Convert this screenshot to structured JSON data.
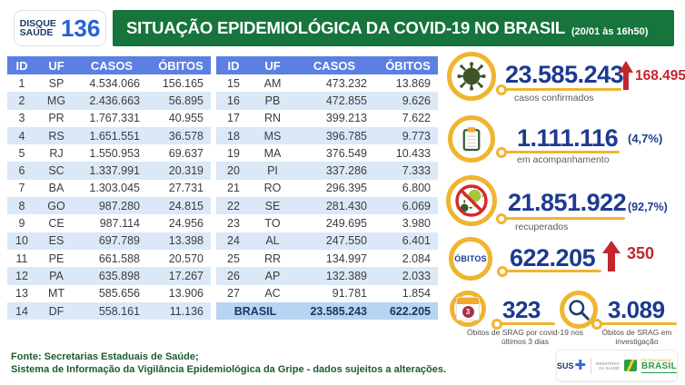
{
  "header": {
    "logo": {
      "line1": "DISQUE",
      "line2": "SAÚDE",
      "number": "136"
    },
    "title": "SITUAÇÃO EPIDEMIOLÓGICA DA COVID-19 NO BRASIL",
    "timestamp": "(20/01 às 16h50)"
  },
  "tables": {
    "columns": [
      "ID",
      "UF",
      "CASOS",
      "ÓBITOS"
    ],
    "left_rows": [
      [
        "1",
        "SP",
        "4.534.066",
        "156.165"
      ],
      [
        "2",
        "MG",
        "2.436.663",
        "56.895"
      ],
      [
        "3",
        "PR",
        "1.767.331",
        "40.955"
      ],
      [
        "4",
        "RS",
        "1.651.551",
        "36.578"
      ],
      [
        "5",
        "RJ",
        "1.550.953",
        "69.637"
      ],
      [
        "6",
        "SC",
        "1.337.991",
        "20.319"
      ],
      [
        "7",
        "BA",
        "1.303.045",
        "27.731"
      ],
      [
        "8",
        "GO",
        "987.280",
        "24.815"
      ],
      [
        "9",
        "CE",
        "987.114",
        "24.956"
      ],
      [
        "10",
        "ES",
        "697.789",
        "13.398"
      ],
      [
        "11",
        "PE",
        "661.588",
        "20.570"
      ],
      [
        "12",
        "PA",
        "635.898",
        "17.267"
      ],
      [
        "13",
        "MT",
        "585.656",
        "13.906"
      ],
      [
        "14",
        "DF",
        "558.161",
        "11.136"
      ]
    ],
    "right_rows": [
      [
        "15",
        "AM",
        "473.232",
        "13.869"
      ],
      [
        "16",
        "PB",
        "472.855",
        "9.626"
      ],
      [
        "17",
        "RN",
        "399.213",
        "7.622"
      ],
      [
        "18",
        "MS",
        "396.785",
        "9.773"
      ],
      [
        "19",
        "MA",
        "376.549",
        "10.433"
      ],
      [
        "20",
        "PI",
        "337.286",
        "7.333"
      ],
      [
        "21",
        "RO",
        "296.395",
        "6.800"
      ],
      [
        "22",
        "SE",
        "281.430",
        "6.069"
      ],
      [
        "23",
        "TO",
        "249.695",
        "3.980"
      ],
      [
        "24",
        "AL",
        "247.550",
        "6.401"
      ],
      [
        "25",
        "RR",
        "134.997",
        "2.084"
      ],
      [
        "26",
        "AP",
        "132.389",
        "2.033"
      ],
      [
        "27",
        "AC",
        "91.781",
        "1.854"
      ]
    ],
    "total": {
      "label": "BRASIL",
      "casos": "23.585.243",
      "obitos": "622.205"
    }
  },
  "metrics": {
    "confirmed": {
      "value": "23.585.243",
      "delta": "168.495",
      "label": "casos confirmados"
    },
    "monitoring": {
      "value": "1.111.116",
      "percent": "(4,7%)",
      "label": "em acompanhamento"
    },
    "recovered": {
      "value": "21.851.922",
      "percent": "(92,7%)",
      "label": "recuperados"
    },
    "deaths": {
      "badge": "ÓBITOS",
      "value": "622.205",
      "delta": "350"
    },
    "srag_covid": {
      "value": "323",
      "badge": "3",
      "label": "Óbitos de SRAG por covid-19 nos últimos 3 dias"
    },
    "srag_investigation": {
      "value": "3.089",
      "label": "Óbitos de SRAG em investigação"
    }
  },
  "footer": {
    "line1": "Fonte: Secretarias Estaduais de Saúde;",
    "line2": "Sistema de Informação da Vigilância Epidemiológica da Gripe - dados sujeitos a alterações.",
    "logos": {
      "sus": "SUS",
      "ministry": "MINISTÉRIO\nDA SAÚDE",
      "patria": "PÁTRIA AMADA",
      "brasil": "BRASIL"
    }
  },
  "colors": {
    "banner_green": "#16743c",
    "table_header_blue": "#5b7fe3",
    "row_stripe_blue": "#dbe8f8",
    "total_row_blue": "#b9d3f3",
    "metric_navy": "#1d3a8f",
    "alert_red": "#c1272d",
    "accent_yellow": "#f0b42f"
  },
  "chart_data": {
    "type": "table",
    "title": "SITUAÇÃO EPIDEMIOLÓGICA DA COVID-19 NO BRASIL (20/01 às 16h50)",
    "columns": [
      "ID",
      "UF",
      "CASOS",
      "ÓBITOS"
    ],
    "rows": [
      [
        1,
        "SP",
        4534066,
        156165
      ],
      [
        2,
        "MG",
        2436663,
        56895
      ],
      [
        3,
        "PR",
        1767331,
        40955
      ],
      [
        4,
        "RS",
        1651551,
        36578
      ],
      [
        5,
        "RJ",
        1550953,
        69637
      ],
      [
        6,
        "SC",
        1337991,
        20319
      ],
      [
        7,
        "BA",
        1303045,
        27731
      ],
      [
        8,
        "GO",
        987280,
        24815
      ],
      [
        9,
        "CE",
        987114,
        24956
      ],
      [
        10,
        "ES",
        697789,
        13398
      ],
      [
        11,
        "PE",
        661588,
        20570
      ],
      [
        12,
        "PA",
        635898,
        17267
      ],
      [
        13,
        "MT",
        585656,
        13906
      ],
      [
        14,
        "DF",
        558161,
        11136
      ],
      [
        15,
        "AM",
        473232,
        13869
      ],
      [
        16,
        "PB",
        472855,
        9626
      ],
      [
        17,
        "RN",
        399213,
        7622
      ],
      [
        18,
        "MS",
        396785,
        9773
      ],
      [
        19,
        "MA",
        376549,
        10433
      ],
      [
        20,
        "PI",
        337286,
        7333
      ],
      [
        21,
        "RO",
        296395,
        6800
      ],
      [
        22,
        "SE",
        281430,
        6069
      ],
      [
        23,
        "TO",
        249695,
        3980
      ],
      [
        24,
        "AL",
        247550,
        6401
      ],
      [
        25,
        "RR",
        134997,
        2084
      ],
      [
        26,
        "AP",
        132389,
        2033
      ],
      [
        27,
        "AC",
        91781,
        1854
      ]
    ],
    "total": {
      "label": "BRASIL",
      "casos": 23585243,
      "obitos": 622205
    },
    "summary": {
      "casos_confirmados": 23585243,
      "novos_casos": 168495,
      "em_acompanhamento": 1111116,
      "em_acompanhamento_pct": "4,7%",
      "recuperados": 21851922,
      "recuperados_pct": "92,7%",
      "obitos": 622205,
      "novos_obitos": 350,
      "obitos_srag_covid_ultimos_3_dias": 323,
      "obitos_srag_em_investigacao": 3089
    }
  }
}
